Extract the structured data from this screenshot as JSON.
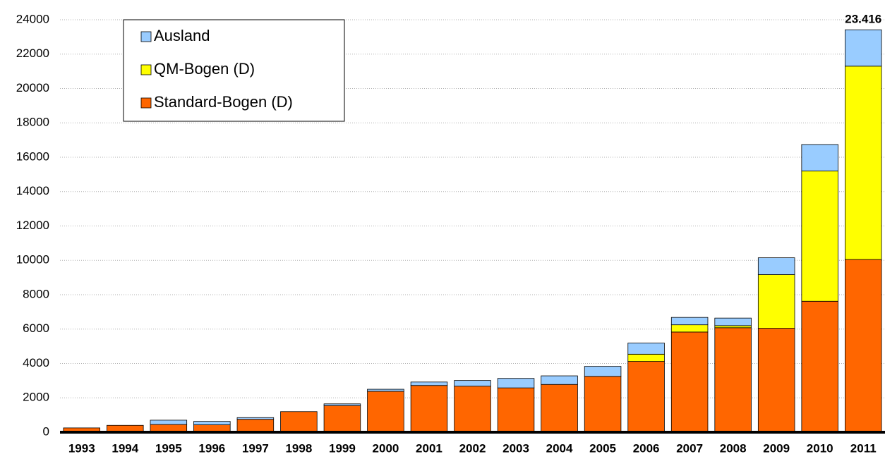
{
  "chart_data": {
    "type": "stacked_bar",
    "categories": [
      "1993",
      "1994",
      "1995",
      "1996",
      "1997",
      "1998",
      "1999",
      "2000",
      "2001",
      "2002",
      "2003",
      "2004",
      "2005",
      "2006",
      "2007",
      "2008",
      "2009",
      "2010",
      "2011"
    ],
    "series": [
      {
        "name": "Standard-Bogen (D)",
        "color": "#ff6600",
        "values": [
          250,
          400,
          450,
          430,
          750,
          1200,
          1550,
          2380,
          2720,
          2680,
          2580,
          2780,
          3250,
          4120,
          5830,
          6080,
          6050,
          7620,
          10050
        ]
      },
      {
        "name": "QM-Bogen (D)",
        "color": "#ffff00",
        "values": [
          0,
          0,
          0,
          0,
          0,
          0,
          0,
          0,
          0,
          0,
          0,
          0,
          0,
          420,
          420,
          120,
          3120,
          7580,
          11250
        ]
      },
      {
        "name": "Ausland",
        "color": "#99ccff",
        "values": [
          0,
          0,
          250,
          200,
          100,
          0,
          100,
          120,
          200,
          330,
          550,
          500,
          580,
          650,
          430,
          440,
          980,
          1540,
          2116
        ]
      }
    ],
    "annotation": {
      "value": 23416,
      "label": "23.416"
    },
    "ylim": [
      0,
      24000
    ],
    "yticks": [
      0,
      2000,
      4000,
      6000,
      8000,
      10000,
      12000,
      14000,
      16000,
      18000,
      20000,
      22000,
      24000
    ],
    "grid": true,
    "legend": "upper-left"
  }
}
